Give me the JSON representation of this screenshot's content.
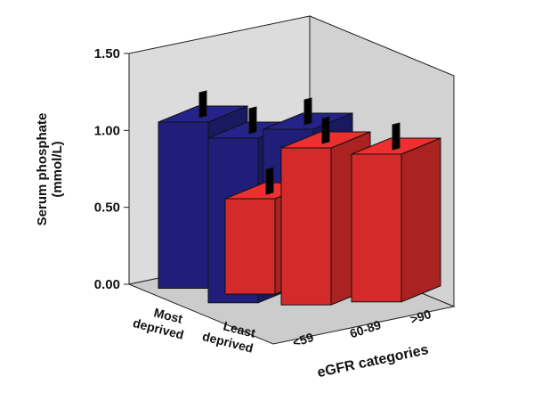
{
  "chart_data": {
    "type": "bar",
    "bar_style": "3d",
    "ylabel_lines": [
      "Serum phosphate",
      "(mmol/L)"
    ],
    "xlabel": "eGFR categories",
    "y_ticks": [
      "0.00",
      "0.50",
      "1.00",
      "1.50"
    ],
    "ylim": [
      0,
      1.5
    ],
    "deprivation_categories": [
      {
        "line1": "Most",
        "line2": "deprived"
      },
      {
        "line1": "Least",
        "line2": "deprived"
      }
    ],
    "egfr_categories": [
      "<59",
      "60-89",
      ">90"
    ],
    "series": [
      {
        "group": "Most deprived",
        "color": "#1f1f7a",
        "values": [
          1.08,
          1.07,
          1.05
        ]
      },
      {
        "group": "Least deprived",
        "color": "#d42a2a",
        "values": [
          0.62,
          1.02,
          0.96
        ]
      }
    ],
    "error_bar_color": "#000000",
    "panel_color": "#dcdcdc"
  }
}
